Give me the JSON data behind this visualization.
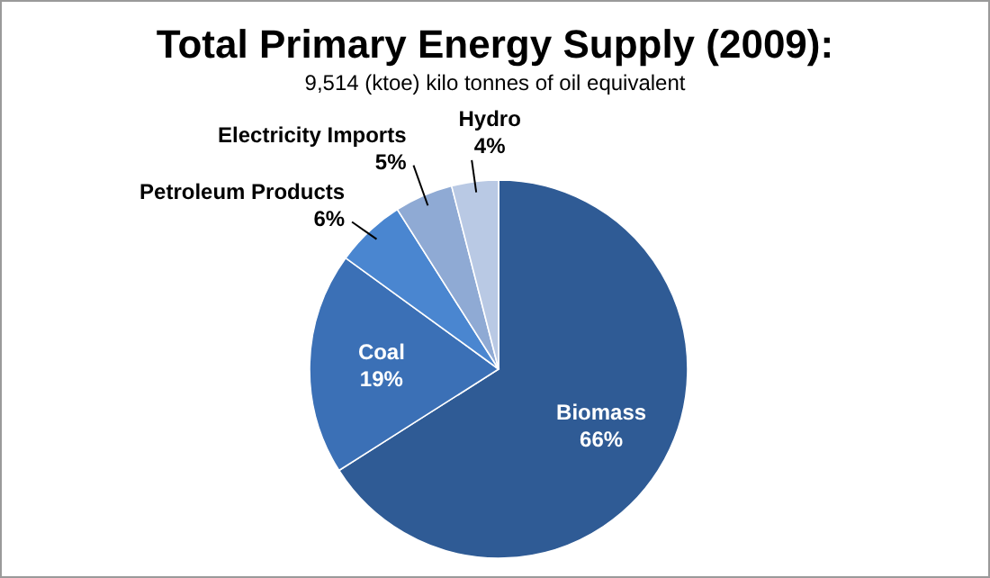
{
  "chart_data": {
    "type": "pie",
    "title": "Total Primary Energy Supply (2009):",
    "subtitle": "9,514 (ktoe) kilo tonnes of oil equivalent",
    "categories": [
      "Biomass",
      "Coal",
      "Petroleum Products",
      "Electricity Imports",
      "Hydro"
    ],
    "values": [
      66,
      19,
      6,
      5,
      4
    ],
    "value_labels": [
      "66%",
      "19%",
      "6%",
      "5%",
      "4%"
    ],
    "colors": [
      "#2f5b95",
      "#3b70b6",
      "#4a86d0",
      "#8faad4",
      "#b9c9e4"
    ]
  }
}
